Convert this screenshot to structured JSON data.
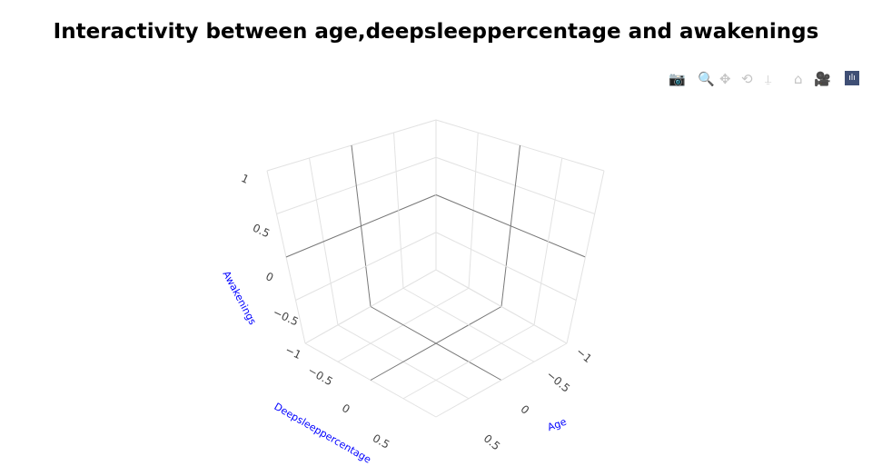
{
  "title": "Interactivity between age,deepsleeppercentage and awakenings",
  "modebar": {
    "icons": [
      "camera-icon",
      "zoom-icon",
      "pan-icon",
      "orbit-rotate-icon",
      "turntable-rotate-icon",
      "home-icon",
      "camera-reset-icon",
      "plotly-logo-icon"
    ]
  },
  "chart_data": {
    "type": "scatter3d",
    "title": "Interactivity between age,deepsleeppercentage and awakenings",
    "x": [],
    "y": [],
    "z": [],
    "xaxis": {
      "title": "Age",
      "range": [
        -1,
        1
      ],
      "ticks": [
        "−1",
        "−0.5",
        "0",
        "0.5"
      ]
    },
    "yaxis": {
      "title": "Deepsleeppercentage",
      "range": [
        -1,
        1
      ],
      "ticks": [
        "−1",
        "−0.5",
        "0",
        "0.5"
      ]
    },
    "zaxis": {
      "title": "Awakenings",
      "range": [
        -1,
        1
      ],
      "ticks": [
        "1",
        "0.5",
        "0",
        "−0.5",
        "−1"
      ]
    },
    "grid": true,
    "axis_title_color": "#0000ff"
  }
}
